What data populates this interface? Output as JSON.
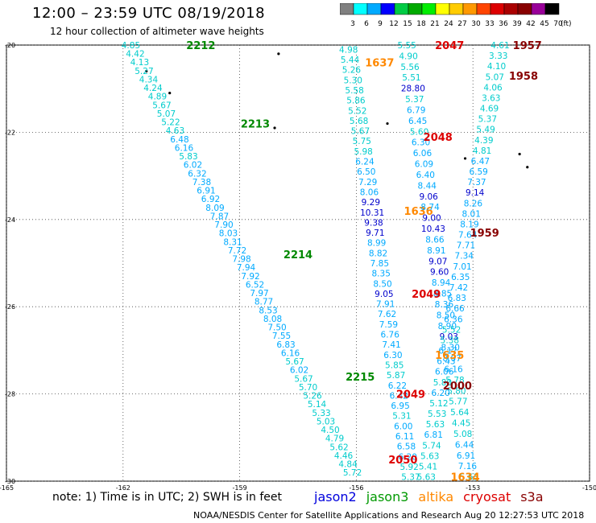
{
  "title": "12:00 – 23:59 UTC 08/19/2018",
  "subtitle": "12 hour collection of altimeter wave heights",
  "note": "note: 1) Time is in UTC; 2) SWH is in feet",
  "credits": "NOAA/NESDIS Center for Satellite Applications and Research   Aug 20 12:27:53 UTC 2018",
  "satellites": [
    {
      "name": "jason2",
      "color": "#0000dd"
    },
    {
      "name": "jason3",
      "color": "#009900"
    },
    {
      "name": "altika",
      "color": "#ff8800"
    },
    {
      "name": "cryosat",
      "color": "#dd0000"
    },
    {
      "name": "s3a",
      "color": "#880000"
    }
  ],
  "legend": {
    "unit": "(ft)",
    "bins": [
      {
        "label": "3",
        "color": "#808080"
      },
      {
        "label": "6",
        "color": "#00ffff"
      },
      {
        "label": "9",
        "color": "#00aaff"
      },
      {
        "label": "12",
        "color": "#0000ff"
      },
      {
        "label": "15",
        "color": "#00cc44"
      },
      {
        "label": "18",
        "color": "#00aa00"
      },
      {
        "label": "21",
        "color": "#00ee00"
      },
      {
        "label": "24",
        "color": "#ffff00"
      },
      {
        "label": "27",
        "color": "#ffcc00"
      },
      {
        "label": "30",
        "color": "#ff9900"
      },
      {
        "label": "33",
        "color": "#ff4400"
      },
      {
        "label": "36",
        "color": "#dd0000"
      },
      {
        "label": "39",
        "color": "#aa0000"
      },
      {
        "label": "42",
        "color": "#880000"
      },
      {
        "label": "45",
        "color": "#990099"
      },
      {
        "label": "70",
        "color": "#000000"
      }
    ]
  },
  "chart_data": {
    "type": "scatter",
    "xlim": [
      -165,
      -150
    ],
    "ylim": [
      -30,
      -20
    ],
    "grid": true,
    "x_ticks": [
      "-165",
      "-162",
      "-159",
      "-156",
      "-153",
      "-150"
    ],
    "y_ticks": [
      "-20",
      "-22",
      "-24",
      "-26",
      "-28",
      "-30"
    ],
    "colors": {
      "lt6": "#00cccc",
      "6to9": "#00aaff",
      "9to12": "#0000cc"
    },
    "tracks": [
      {
        "start": [
          -161.8,
          -20.0
        ],
        "end": [
          -156.1,
          -29.8
        ],
        "values": [
          "4.85",
          "4.42",
          "4.13",
          "5.27",
          "4.34",
          "4.24",
          "4.89",
          "5.67",
          "5.07",
          "5.22",
          "4.63",
          "6.48",
          "6.16",
          "5.83",
          "6.02",
          "6.32",
          "7.38",
          "6.91",
          "6.92",
          "8.09",
          "7.87",
          "7.90",
          "8.03",
          "8.31",
          "7.72",
          "7.98",
          "7.94",
          "7.92",
          "6.52",
          "7.97",
          "8.77",
          "8.53",
          "8.08",
          "7.50",
          "7.55",
          "6.83",
          "6.16",
          "5.67",
          "6.02",
          "5.67",
          "5.70",
          "5.26",
          "5.14",
          "5.33",
          "5.03",
          "4.50",
          "4.79",
          "5.62",
          "4.46",
          "4.84",
          "5.72"
        ],
        "labels": [
          {
            "text": "2212",
            "lon": -160.0,
            "lat": -20.0,
            "color": "#008800"
          },
          {
            "text": "2213",
            "lon": -158.6,
            "lat": -21.8,
            "color": "#008800"
          },
          {
            "text": "2214",
            "lon": -157.5,
            "lat": -24.8,
            "color": "#008800"
          },
          {
            "text": "2215",
            "lon": -155.9,
            "lat": -27.6,
            "color": "#008800"
          }
        ]
      },
      {
        "start": [
          -156.2,
          -20.1
        ],
        "end": [
          -154.6,
          -29.9
        ],
        "values": [
          "4.98",
          "5.44",
          "5.26",
          "5.30",
          "5.58",
          "5.86",
          "5.52",
          "5.68",
          "5.67",
          "5.75",
          "5.98",
          "6.24",
          "6.50",
          "7.29",
          "8.06",
          "9.29",
          "10.31",
          "9.38",
          "9.71",
          "8.99",
          "8.82",
          "7.85",
          "8.35",
          "8.50",
          "9.05",
          "7.91",
          "7.62",
          "7.59",
          "6.76",
          "7.41",
          "6.30",
          "5.85",
          "5.87",
          "6.22",
          "6.42",
          "6.95",
          "5.31",
          "6.00",
          "6.11",
          "6.58",
          "6.20",
          "5.92",
          "5.37"
        ],
        "labels": [
          {
            "text": "1637",
            "lon": -155.4,
            "lat": -20.4,
            "color": "#ff8800"
          },
          {
            "text": "1636",
            "lon": -154.4,
            "lat": -23.8,
            "color": "#ff8800"
          }
        ]
      },
      {
        "start": [
          -154.7,
          -20.0
        ],
        "end": [
          -153.1,
          -29.9
        ],
        "values": [
          "5.55",
          "4.90",
          "5.56",
          "5.51",
          "28.80",
          "5.37",
          "6.79",
          "6.45",
          "5.60",
          "6.30",
          "6.06",
          "6.09",
          "6.40",
          "8.44",
          "9.06",
          "8.74",
          "9.00",
          "10.43",
          "8.66",
          "8.91",
          "9.07",
          "9.60",
          "8.94",
          "8.85",
          "8.36",
          "8.50",
          "8.90",
          "9.03",
          "8.30",
          "8.07",
          "6.16",
          "5.78",
          "5.80",
          "5.77",
          "5.64",
          "4.45",
          "5.08",
          "6.44",
          "6.91",
          "7.16",
          "5.63"
        ],
        "labels": [
          {
            "text": "2047",
            "lon": -153.6,
            "lat": -20.0,
            "color": "#dd0000"
          },
          {
            "text": "2048",
            "lon": -153.9,
            "lat": -22.1,
            "color": "#dd0000"
          },
          {
            "text": "2049",
            "lon": -154.2,
            "lat": -25.7,
            "color": "#dd0000"
          },
          {
            "text": "2049",
            "lon": -154.6,
            "lat": -28.0,
            "color": "#dd0000"
          },
          {
            "text": "2050",
            "lon": -154.8,
            "lat": -29.5,
            "color": "#dd0000"
          }
        ]
      },
      {
        "start": [
          -152.3,
          -20.0
        ],
        "end": [
          -154.2,
          -29.9
        ],
        "values": [
          "4.61",
          "3.33",
          "4.10",
          "5.07",
          "4.06",
          "3.63",
          "4.69",
          "5.37",
          "5.49",
          "4.39",
          "4.81",
          "6.47",
          "6.59",
          "7.37",
          "9.14",
          "8.26",
          "8.01",
          "8.19",
          "7.64",
          "7.71",
          "7.34",
          "7.01",
          "6.35",
          "7.42",
          "6.83",
          "6.66",
          "6.36",
          "5.52",
          "5.38",
          "6.17",
          "6.43",
          "6.06",
          "5.80",
          "6.20",
          "5.12",
          "5.53",
          "5.63",
          "6.81",
          "5.74",
          "5.63",
          "5.41",
          "5.63"
        ],
        "labels": [
          {
            "text": "1957",
            "lon": -151.6,
            "lat": -20.0,
            "color": "#880000"
          },
          {
            "text": "1958",
            "lon": -151.7,
            "lat": -20.7,
            "color": "#880000"
          },
          {
            "text": "1959",
            "lon": -152.7,
            "lat": -24.3,
            "color": "#880000"
          },
          {
            "text": "2000",
            "lon": -153.4,
            "lat": -27.8,
            "color": "#880000"
          }
        ]
      }
    ],
    "extra_labels": [
      {
        "text": "1635",
        "lon": -153.6,
        "lat": -27.1,
        "color": "#ff8800"
      },
      {
        "text": "1634",
        "lon": -153.2,
        "lat": -29.9,
        "color": "#ff8800"
      }
    ],
    "islands": [
      {
        "lon": -161.4,
        "lat": -20.6
      },
      {
        "lon": -160.8,
        "lat": -21.1
      },
      {
        "lon": -158.1,
        "lat": -21.9
      },
      {
        "lon": -155.2,
        "lat": -21.8
      },
      {
        "lon": -153.2,
        "lat": -22.6
      },
      {
        "lon": -151.8,
        "lat": -22.5
      },
      {
        "lon": -151.6,
        "lat": -22.8
      },
      {
        "lon": -158.0,
        "lat": -20.2
      }
    ]
  }
}
